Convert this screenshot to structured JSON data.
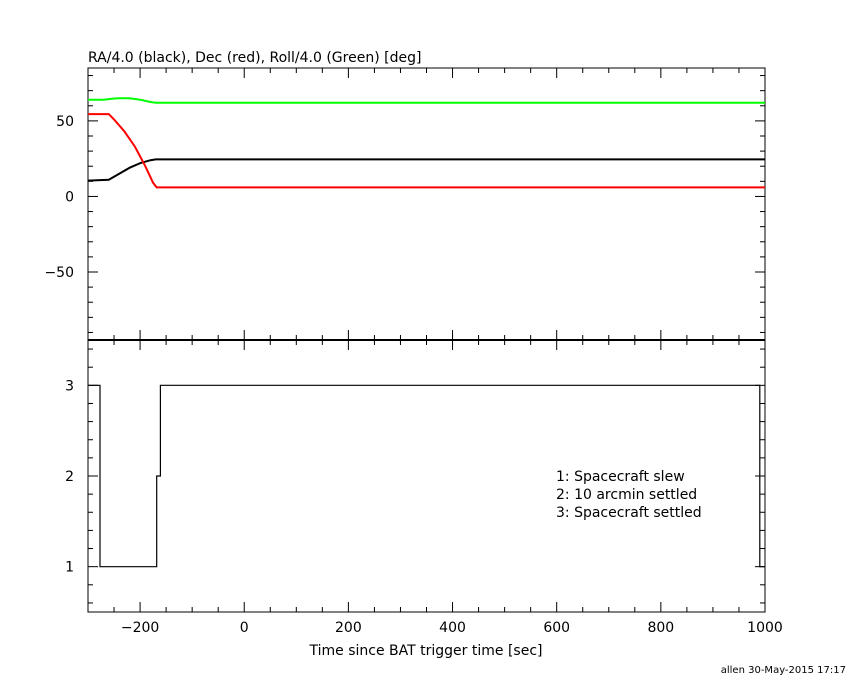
{
  "chart_data": [
    {
      "type": "line",
      "title": "RA/4.0 (black), Dec (red), Roll/4.0 (Green) [deg]",
      "xlim": [
        -300,
        1000
      ],
      "ylim": [
        -95,
        85
      ],
      "yticks": [
        50,
        0,
        -50
      ],
      "ytick_labels": [
        "50",
        "0",
        "−50"
      ],
      "series": [
        {
          "color": "#000000",
          "x": [
            -300,
            -260,
            -240,
            -220,
            -200,
            -180,
            -170,
            -160,
            360,
            1000
          ],
          "y": [
            10.5,
            11,
            15,
            19,
            22,
            24,
            24.5,
            24.5,
            24.5,
            24.5
          ]
        },
        {
          "color": "#ff0000",
          "x": [
            -300,
            -260,
            -250,
            -230,
            -210,
            -190,
            -175,
            -168,
            -160,
            360,
            1000
          ],
          "y": [
            54.5,
            54.5,
            51,
            43,
            33,
            20,
            9,
            6,
            6,
            6,
            6
          ]
        },
        {
          "color": "#00ff00",
          "x": [
            -300,
            -270,
            -250,
            -240,
            -220,
            -200,
            -180,
            -170,
            -160,
            360,
            1000
          ],
          "y": [
            64,
            64,
            64.8,
            65,
            65,
            64,
            62.5,
            62,
            62,
            62,
            62
          ]
        }
      ]
    },
    {
      "type": "line",
      "xlabel": "Time since BAT trigger time [sec]",
      "xlim": [
        -300,
        1000
      ],
      "ylim": [
        0.5,
        3.5
      ],
      "xticks": [
        -200,
        0,
        200,
        400,
        600,
        800,
        1000
      ],
      "xtick_labels": [
        "−200",
        "0",
        "200",
        "400",
        "600",
        "800",
        "1000"
      ],
      "yticks": [
        1,
        2,
        3
      ],
      "ytick_labels": [
        "1",
        "2",
        "3"
      ],
      "series": [
        {
          "color": "#000000",
          "step": true,
          "x": [
            -300,
            -277,
            -168,
            -161,
            990,
            1000
          ],
          "y": [
            3,
            1,
            2,
            3,
            1,
            1
          ]
        }
      ],
      "legend": [
        "1: Spacecraft slew",
        "2: 10 arcmin settled",
        "3: Spacecraft settled"
      ],
      "legend_position": "right"
    }
  ],
  "footer": "allen 30-May-2015 17:17"
}
